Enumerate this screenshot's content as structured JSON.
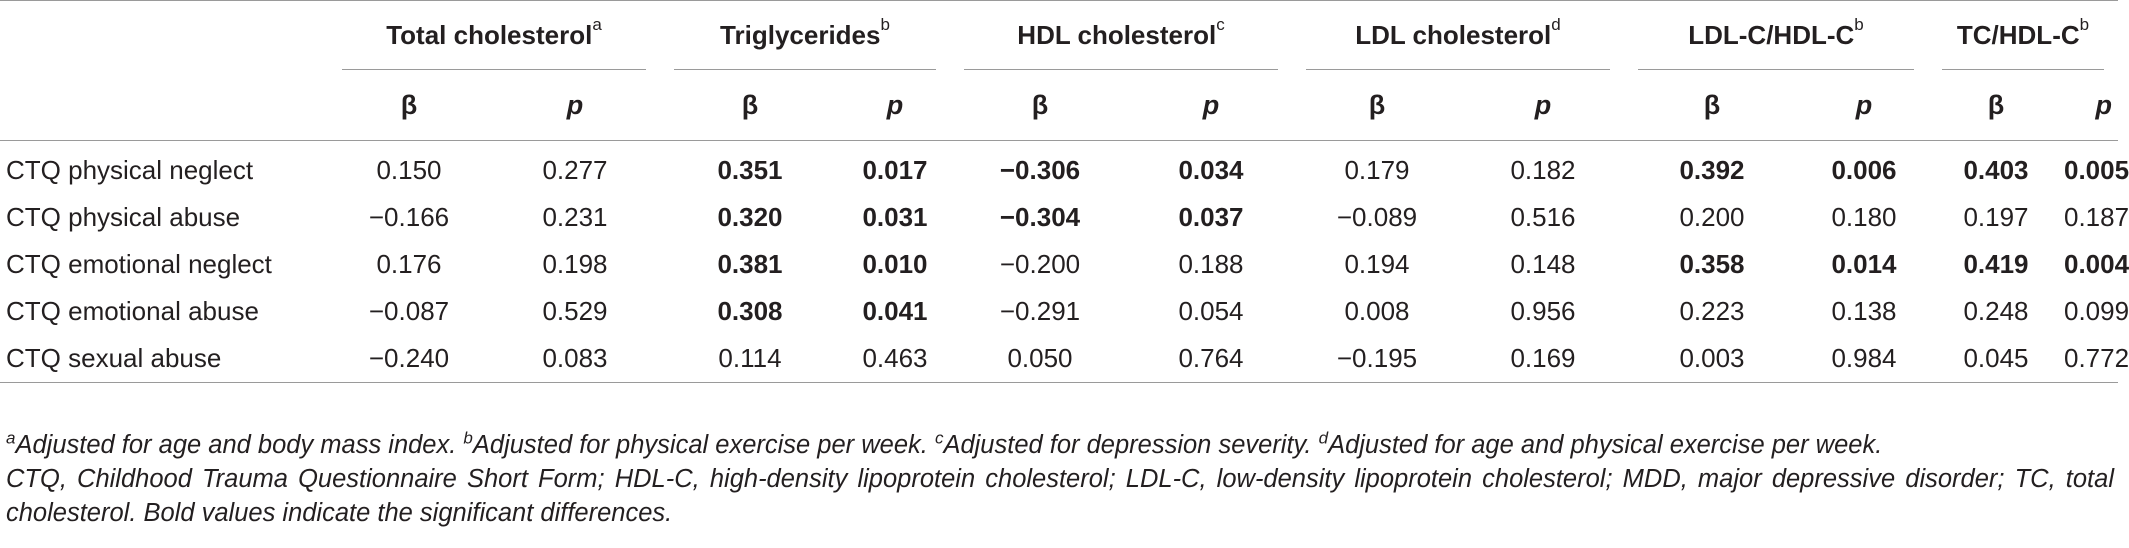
{
  "groups": [
    {
      "label": "Total cholesterol",
      "sup": "a"
    },
    {
      "label": "Triglycerides",
      "sup": "b"
    },
    {
      "label": "HDL cholesterol",
      "sup": "c"
    },
    {
      "label": "LDL cholesterol",
      "sup": "d"
    },
    {
      "label": "LDL-C/HDL-C",
      "sup": "b"
    },
    {
      "label": "TC/HDL-C",
      "sup": "b"
    }
  ],
  "sub_labels": {
    "beta": "β",
    "p": "p"
  },
  "rows": [
    {
      "label": "CTQ physical neglect",
      "cells": [
        {
          "v": "0.150",
          "bold": false
        },
        {
          "v": "0.277",
          "bold": false
        },
        {
          "v": "0.351",
          "bold": true
        },
        {
          "v": "0.017",
          "bold": true
        },
        {
          "v": "−0.306",
          "bold": true
        },
        {
          "v": "0.034",
          "bold": true
        },
        {
          "v": "0.179",
          "bold": false
        },
        {
          "v": "0.182",
          "bold": false
        },
        {
          "v": "0.392",
          "bold": true
        },
        {
          "v": "0.006",
          "bold": true
        },
        {
          "v": "0.403",
          "bold": true
        },
        {
          "v": "0.005",
          "bold": true
        }
      ]
    },
    {
      "label": "CTQ physical abuse",
      "cells": [
        {
          "v": "−0.166",
          "bold": false
        },
        {
          "v": "0.231",
          "bold": false
        },
        {
          "v": "0.320",
          "bold": true
        },
        {
          "v": "0.031",
          "bold": true
        },
        {
          "v": "−0.304",
          "bold": true
        },
        {
          "v": "0.037",
          "bold": true
        },
        {
          "v": "−0.089",
          "bold": false
        },
        {
          "v": "0.516",
          "bold": false
        },
        {
          "v": "0.200",
          "bold": false
        },
        {
          "v": "0.180",
          "bold": false
        },
        {
          "v": "0.197",
          "bold": false
        },
        {
          "v": "0.187",
          "bold": false
        }
      ]
    },
    {
      "label": "CTQ emotional neglect",
      "cells": [
        {
          "v": "0.176",
          "bold": false
        },
        {
          "v": "0.198",
          "bold": false
        },
        {
          "v": "0.381",
          "bold": true
        },
        {
          "v": "0.010",
          "bold": true
        },
        {
          "v": "−0.200",
          "bold": false
        },
        {
          "v": "0.188",
          "bold": false
        },
        {
          "v": "0.194",
          "bold": false
        },
        {
          "v": "0.148",
          "bold": false
        },
        {
          "v": "0.358",
          "bold": true
        },
        {
          "v": "0.014",
          "bold": true
        },
        {
          "v": "0.419",
          "bold": true
        },
        {
          "v": "0.004",
          "bold": true
        }
      ]
    },
    {
      "label": "CTQ emotional abuse",
      "cells": [
        {
          "v": "−0.087",
          "bold": false
        },
        {
          "v": "0.529",
          "bold": false
        },
        {
          "v": "0.308",
          "bold": true
        },
        {
          "v": "0.041",
          "bold": true
        },
        {
          "v": "−0.291",
          "bold": false
        },
        {
          "v": "0.054",
          "bold": false
        },
        {
          "v": "0.008",
          "bold": false
        },
        {
          "v": "0.956",
          "bold": false
        },
        {
          "v": "0.223",
          "bold": false
        },
        {
          "v": "0.138",
          "bold": false
        },
        {
          "v": "0.248",
          "bold": false
        },
        {
          "v": "0.099",
          "bold": false
        }
      ]
    },
    {
      "label": "CTQ sexual abuse",
      "cells": [
        {
          "v": "−0.240",
          "bold": false
        },
        {
          "v": "0.083",
          "bold": false
        },
        {
          "v": "0.114",
          "bold": false
        },
        {
          "v": "0.463",
          "bold": false
        },
        {
          "v": "0.050",
          "bold": false
        },
        {
          "v": "0.764",
          "bold": false
        },
        {
          "v": "−0.195",
          "bold": false
        },
        {
          "v": "0.169",
          "bold": false
        },
        {
          "v": "0.003",
          "bold": false
        },
        {
          "v": "0.984",
          "bold": false
        },
        {
          "v": "0.045",
          "bold": false
        },
        {
          "v": "0.772",
          "bold": false
        }
      ]
    }
  ],
  "footnotes": {
    "a_sup": "a",
    "a_text": "Adjusted for age and body mass index. ",
    "b_sup": "b",
    "b_text": "Adjusted for physical exercise per week. ",
    "c_sup": "c",
    "c_text": "Adjusted for depression severity. ",
    "d_sup": "d",
    "d_text": "Adjusted for age and physical exercise per week.",
    "abbreviations": "CTQ, Childhood Trauma Questionnaire Short Form; HDL-C, high-density lipoprotein cholesterol; LDL-C, low-density lipoprotein cholesterol; MDD, major depressive disorder; TC, total cholesterol. Bold values indicate the significant differences."
  }
}
